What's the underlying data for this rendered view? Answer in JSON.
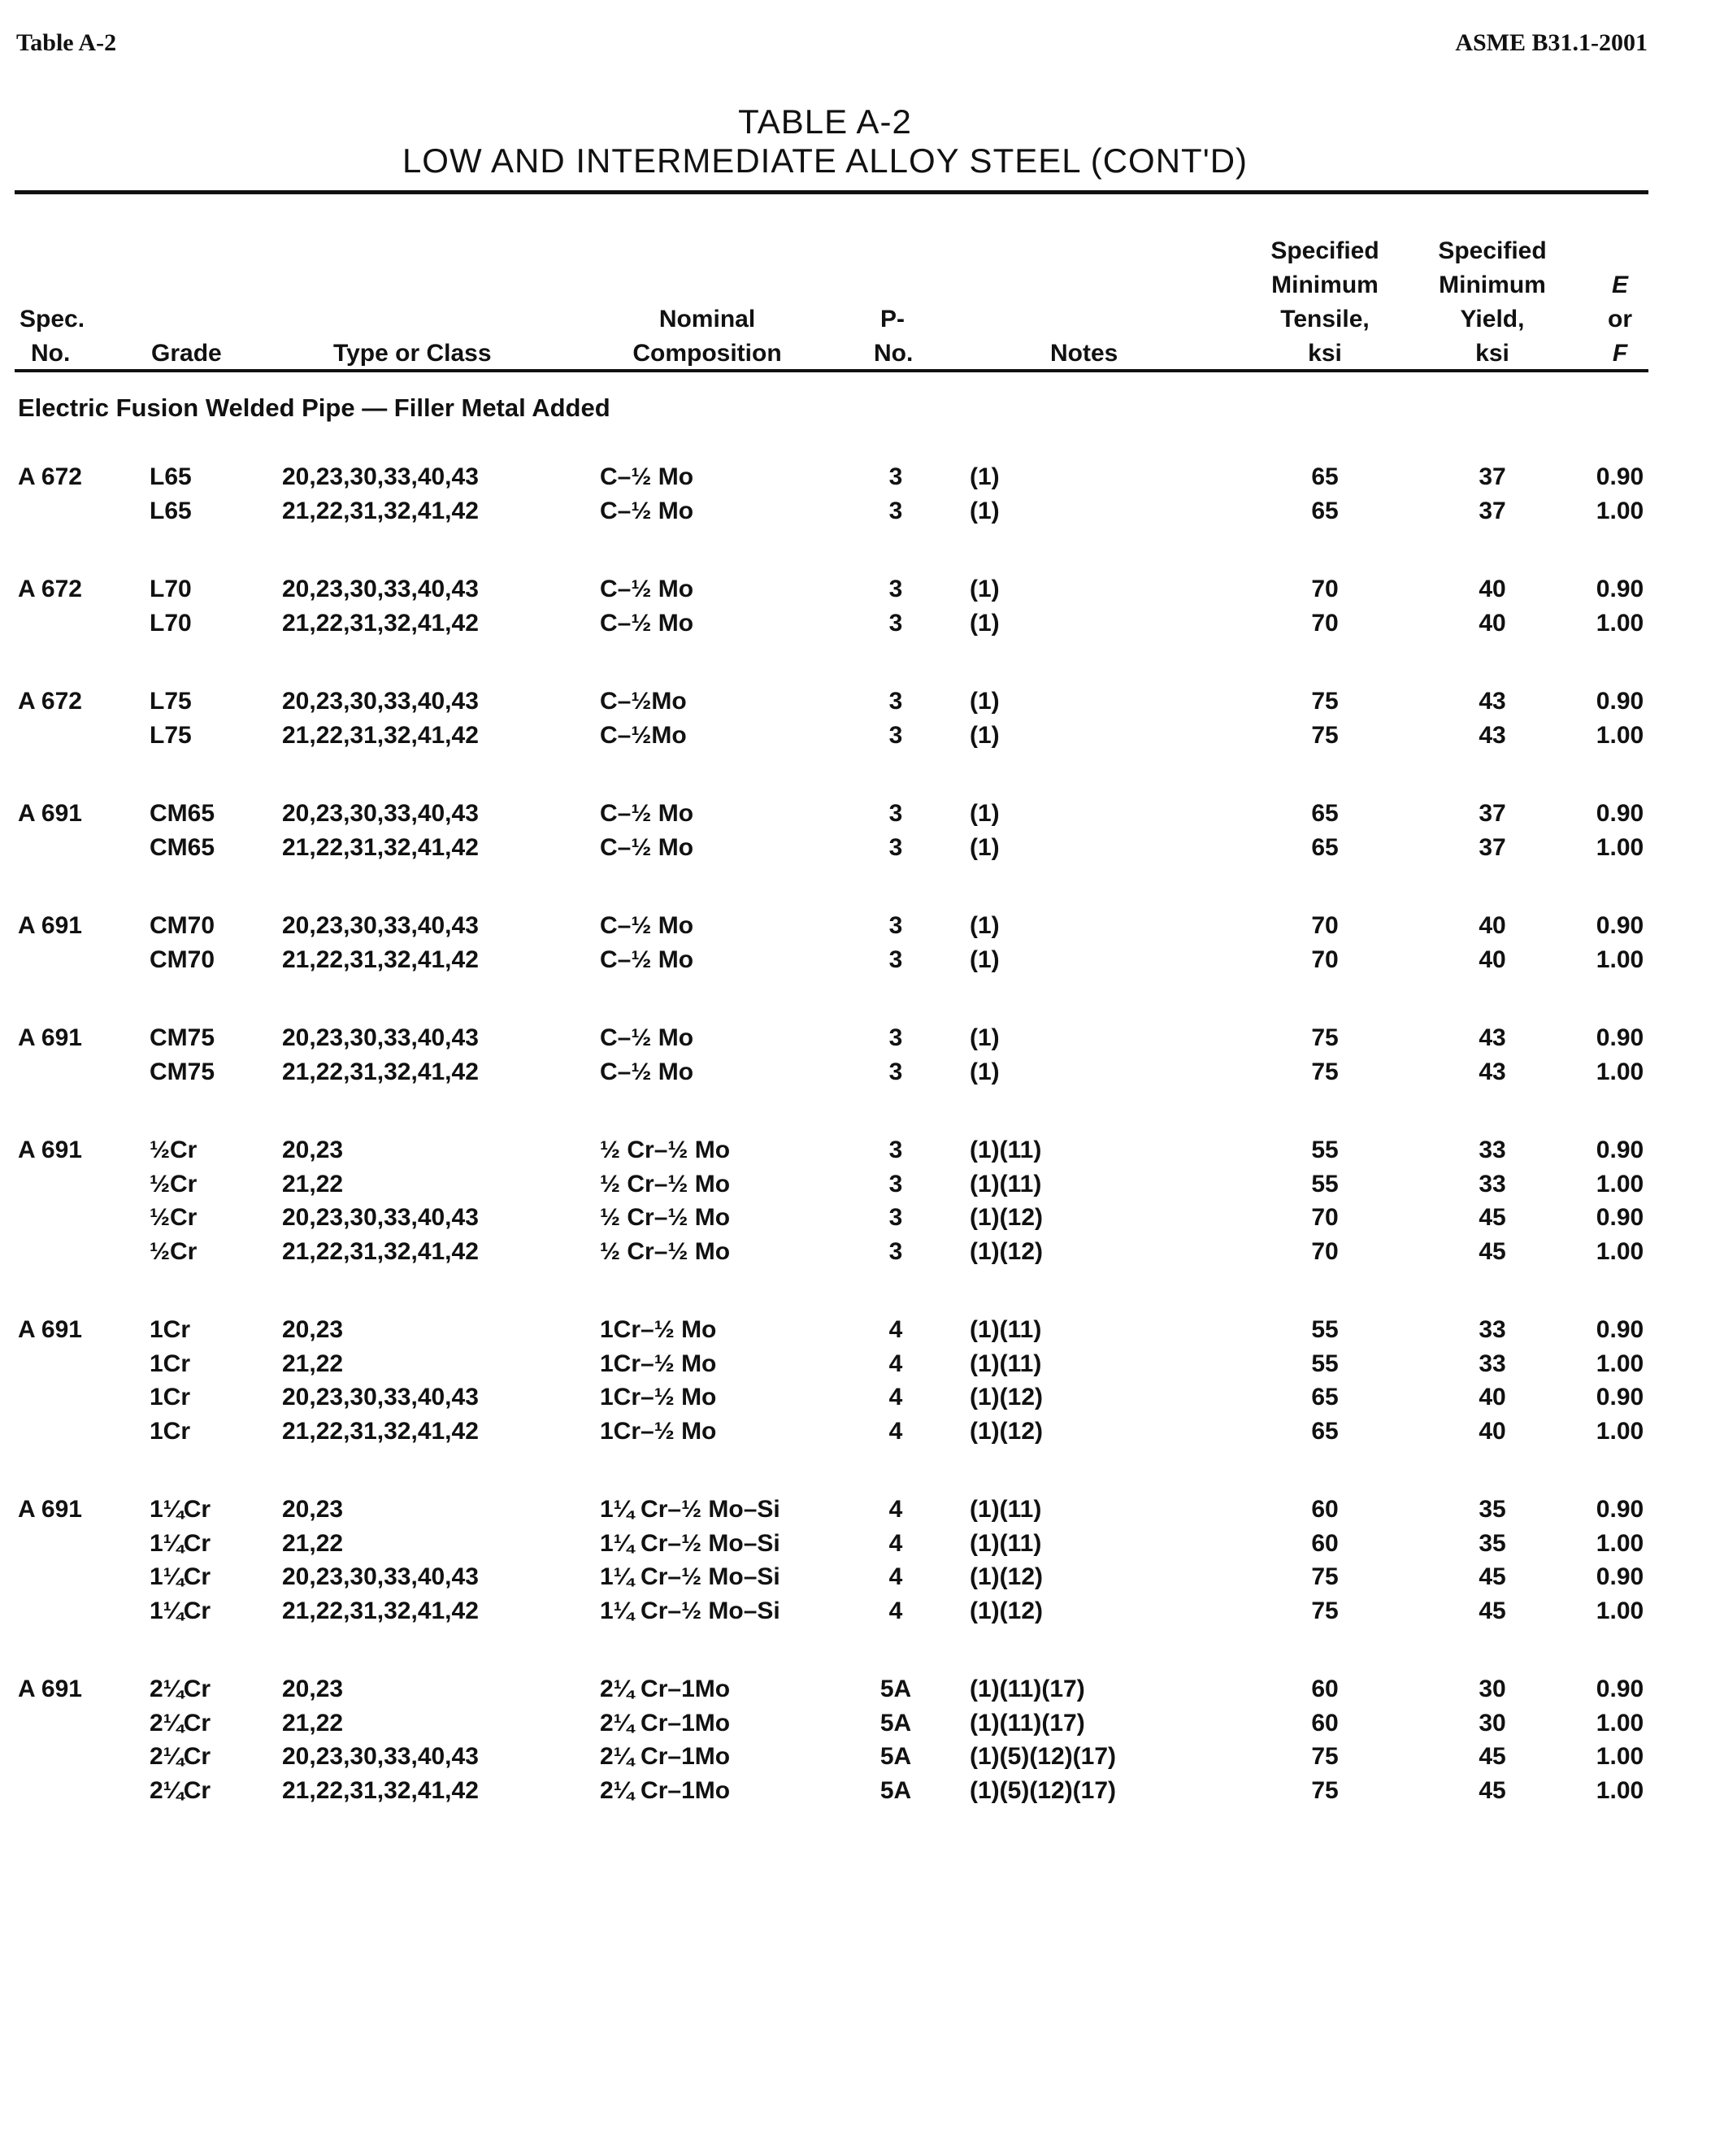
{
  "running_header": {
    "left": "Table A-2",
    "right": "ASME B31.1-2001"
  },
  "title": {
    "line1": "TABLE A-2",
    "line2": "LOW AND INTERMEDIATE ALLOY STEEL (CONT'D)"
  },
  "columns": {
    "spec": [
      "Spec.",
      "No."
    ],
    "grade": "Grade",
    "type": "Type or Class",
    "composition": [
      "Nominal",
      "Composition"
    ],
    "pno": [
      "P-",
      "No."
    ],
    "notes": "Notes",
    "tensile": [
      "Specified",
      "Minimum",
      "Tensile,",
      "ksi"
    ],
    "yield": [
      "Specified",
      "Minimum",
      "Yield,",
      "ksi"
    ],
    "ef": [
      "E",
      "or",
      "F"
    ]
  },
  "section_label": "Electric Fusion Welded Pipe — Filler Metal Added",
  "groups": [
    {
      "spec": "A 672",
      "rows": [
        {
          "grade": "L65",
          "type": "20,23,30,33,40,43",
          "comp": "C–½ Mo",
          "pno": "3",
          "notes": "(1)",
          "tensile": "65",
          "yield": "37",
          "ef": "0.90"
        },
        {
          "grade": "L65",
          "type": "21,22,31,32,41,42",
          "comp": "C–½ Mo",
          "pno": "3",
          "notes": "(1)",
          "tensile": "65",
          "yield": "37",
          "ef": "1.00"
        }
      ]
    },
    {
      "spec": "A 672",
      "rows": [
        {
          "grade": "L70",
          "type": "20,23,30,33,40,43",
          "comp": "C–½ Mo",
          "pno": "3",
          "notes": "(1)",
          "tensile": "70",
          "yield": "40",
          "ef": "0.90"
        },
        {
          "grade": "L70",
          "type": "21,22,31,32,41,42",
          "comp": "C–½ Mo",
          "pno": "3",
          "notes": "(1)",
          "tensile": "70",
          "yield": "40",
          "ef": "1.00"
        }
      ]
    },
    {
      "spec": "A 672",
      "rows": [
        {
          "grade": "L75",
          "type": "20,23,30,33,40,43",
          "comp": "C–½Mo",
          "pno": "3",
          "notes": "(1)",
          "tensile": "75",
          "yield": "43",
          "ef": "0.90"
        },
        {
          "grade": "L75",
          "type": "21,22,31,32,41,42",
          "comp": "C–½Mo",
          "pno": "3",
          "notes": "(1)",
          "tensile": "75",
          "yield": "43",
          "ef": "1.00"
        }
      ]
    },
    {
      "spec": "A 691",
      "rows": [
        {
          "grade": "CM65",
          "type": "20,23,30,33,40,43",
          "comp": "C–½ Mo",
          "pno": "3",
          "notes": "(1)",
          "tensile": "65",
          "yield": "37",
          "ef": "0.90"
        },
        {
          "grade": "CM65",
          "type": "21,22,31,32,41,42",
          "comp": "C–½ Mo",
          "pno": "3",
          "notes": "(1)",
          "tensile": "65",
          "yield": "37",
          "ef": "1.00"
        }
      ]
    },
    {
      "spec": "A 691",
      "rows": [
        {
          "grade": "CM70",
          "type": "20,23,30,33,40,43",
          "comp": "C–½ Mo",
          "pno": "3",
          "notes": "(1)",
          "tensile": "70",
          "yield": "40",
          "ef": "0.90"
        },
        {
          "grade": "CM70",
          "type": "21,22,31,32,41,42",
          "comp": "C–½ Mo",
          "pno": "3",
          "notes": "(1)",
          "tensile": "70",
          "yield": "40",
          "ef": "1.00"
        }
      ]
    },
    {
      "spec": "A 691",
      "rows": [
        {
          "grade": "CM75",
          "type": "20,23,30,33,40,43",
          "comp": "C–½ Mo",
          "pno": "3",
          "notes": "(1)",
          "tensile": "75",
          "yield": "43",
          "ef": "0.90"
        },
        {
          "grade": "CM75",
          "type": "21,22,31,32,41,42",
          "comp": "C–½ Mo",
          "pno": "3",
          "notes": "(1)",
          "tensile": "75",
          "yield": "43",
          "ef": "1.00"
        }
      ]
    },
    {
      "spec": "A 691",
      "rows": [
        {
          "grade": "½Cr",
          "type": "20,23",
          "comp": "½ Cr–½ Mo",
          "pno": "3",
          "notes": "(1)(11)",
          "tensile": "55",
          "yield": "33",
          "ef": "0.90"
        },
        {
          "grade": "½Cr",
          "type": "21,22",
          "comp": "½ Cr–½ Mo",
          "pno": "3",
          "notes": "(1)(11)",
          "tensile": "55",
          "yield": "33",
          "ef": "1.00"
        },
        {
          "grade": "½Cr",
          "type": "20,23,30,33,40,43",
          "comp": "½ Cr–½ Mo",
          "pno": "3",
          "notes": "(1)(12)",
          "tensile": "70",
          "yield": "45",
          "ef": "0.90"
        },
        {
          "grade": "½Cr",
          "type": "21,22,31,32,41,42",
          "comp": "½ Cr–½ Mo",
          "pno": "3",
          "notes": "(1)(12)",
          "tensile": "70",
          "yield": "45",
          "ef": "1.00"
        }
      ]
    },
    {
      "spec": "A 691",
      "rows": [
        {
          "grade": "1Cr",
          "type": "20,23",
          "comp": "1Cr–½ Mo",
          "pno": "4",
          "notes": "(1)(11)",
          "tensile": "55",
          "yield": "33",
          "ef": "0.90"
        },
        {
          "grade": "1Cr",
          "type": "21,22",
          "comp": "1Cr–½ Mo",
          "pno": "4",
          "notes": "(1)(11)",
          "tensile": "55",
          "yield": "33",
          "ef": "1.00"
        },
        {
          "grade": "1Cr",
          "type": "20,23,30,33,40,43",
          "comp": "1Cr–½ Mo",
          "pno": "4",
          "notes": "(1)(12)",
          "tensile": "65",
          "yield": "40",
          "ef": "0.90"
        },
        {
          "grade": "1Cr",
          "type": "21,22,31,32,41,42",
          "comp": "1Cr–½ Mo",
          "pno": "4",
          "notes": "(1)(12)",
          "tensile": "65",
          "yield": "40",
          "ef": "1.00"
        }
      ]
    },
    {
      "spec": "A 691",
      "rows": [
        {
          "grade": "1¼Cr",
          "type": "20,23",
          "comp": "1¼ Cr–½ Mo–Si",
          "pno": "4",
          "notes": "(1)(11)",
          "tensile": "60",
          "yield": "35",
          "ef": "0.90"
        },
        {
          "grade": "1¼Cr",
          "type": "21,22",
          "comp": "1¼ Cr–½ Mo–Si",
          "pno": "4",
          "notes": "(1)(11)",
          "tensile": "60",
          "yield": "35",
          "ef": "1.00"
        },
        {
          "grade": "1¼Cr",
          "type": "20,23,30,33,40,43",
          "comp": "1¼ Cr–½ Mo–Si",
          "pno": "4",
          "notes": "(1)(12)",
          "tensile": "75",
          "yield": "45",
          "ef": "0.90"
        },
        {
          "grade": "1¼Cr",
          "type": "21,22,31,32,41,42",
          "comp": "1¼ Cr–½ Mo–Si",
          "pno": "4",
          "notes": "(1)(12)",
          "tensile": "75",
          "yield": "45",
          "ef": "1.00"
        }
      ]
    },
    {
      "spec": "A 691",
      "rows": [
        {
          "grade": "2¼Cr",
          "type": "20,23",
          "comp": "2¼ Cr–1Mo",
          "pno": "5A",
          "notes": "(1)(11)(17)",
          "tensile": "60",
          "yield": "30",
          "ef": "0.90"
        },
        {
          "grade": "2¼Cr",
          "type": "21,22",
          "comp": "2¼ Cr–1Mo",
          "pno": "5A",
          "notes": "(1)(11)(17)",
          "tensile": "60",
          "yield": "30",
          "ef": "1.00"
        },
        {
          "grade": "2¼Cr",
          "type": "20,23,30,33,40,43",
          "comp": "2¼ Cr–1Mo",
          "pno": "5A",
          "notes": "(1)(5)(12)(17)",
          "tensile": "75",
          "yield": "45",
          "ef": "1.00"
        },
        {
          "grade": "2¼Cr",
          "type": "21,22,31,32,41,42",
          "comp": "2¼ Cr–1Mo",
          "pno": "5A",
          "notes": "(1)(5)(12)(17)",
          "tensile": "75",
          "yield": "45",
          "ef": "1.00"
        }
      ]
    }
  ]
}
